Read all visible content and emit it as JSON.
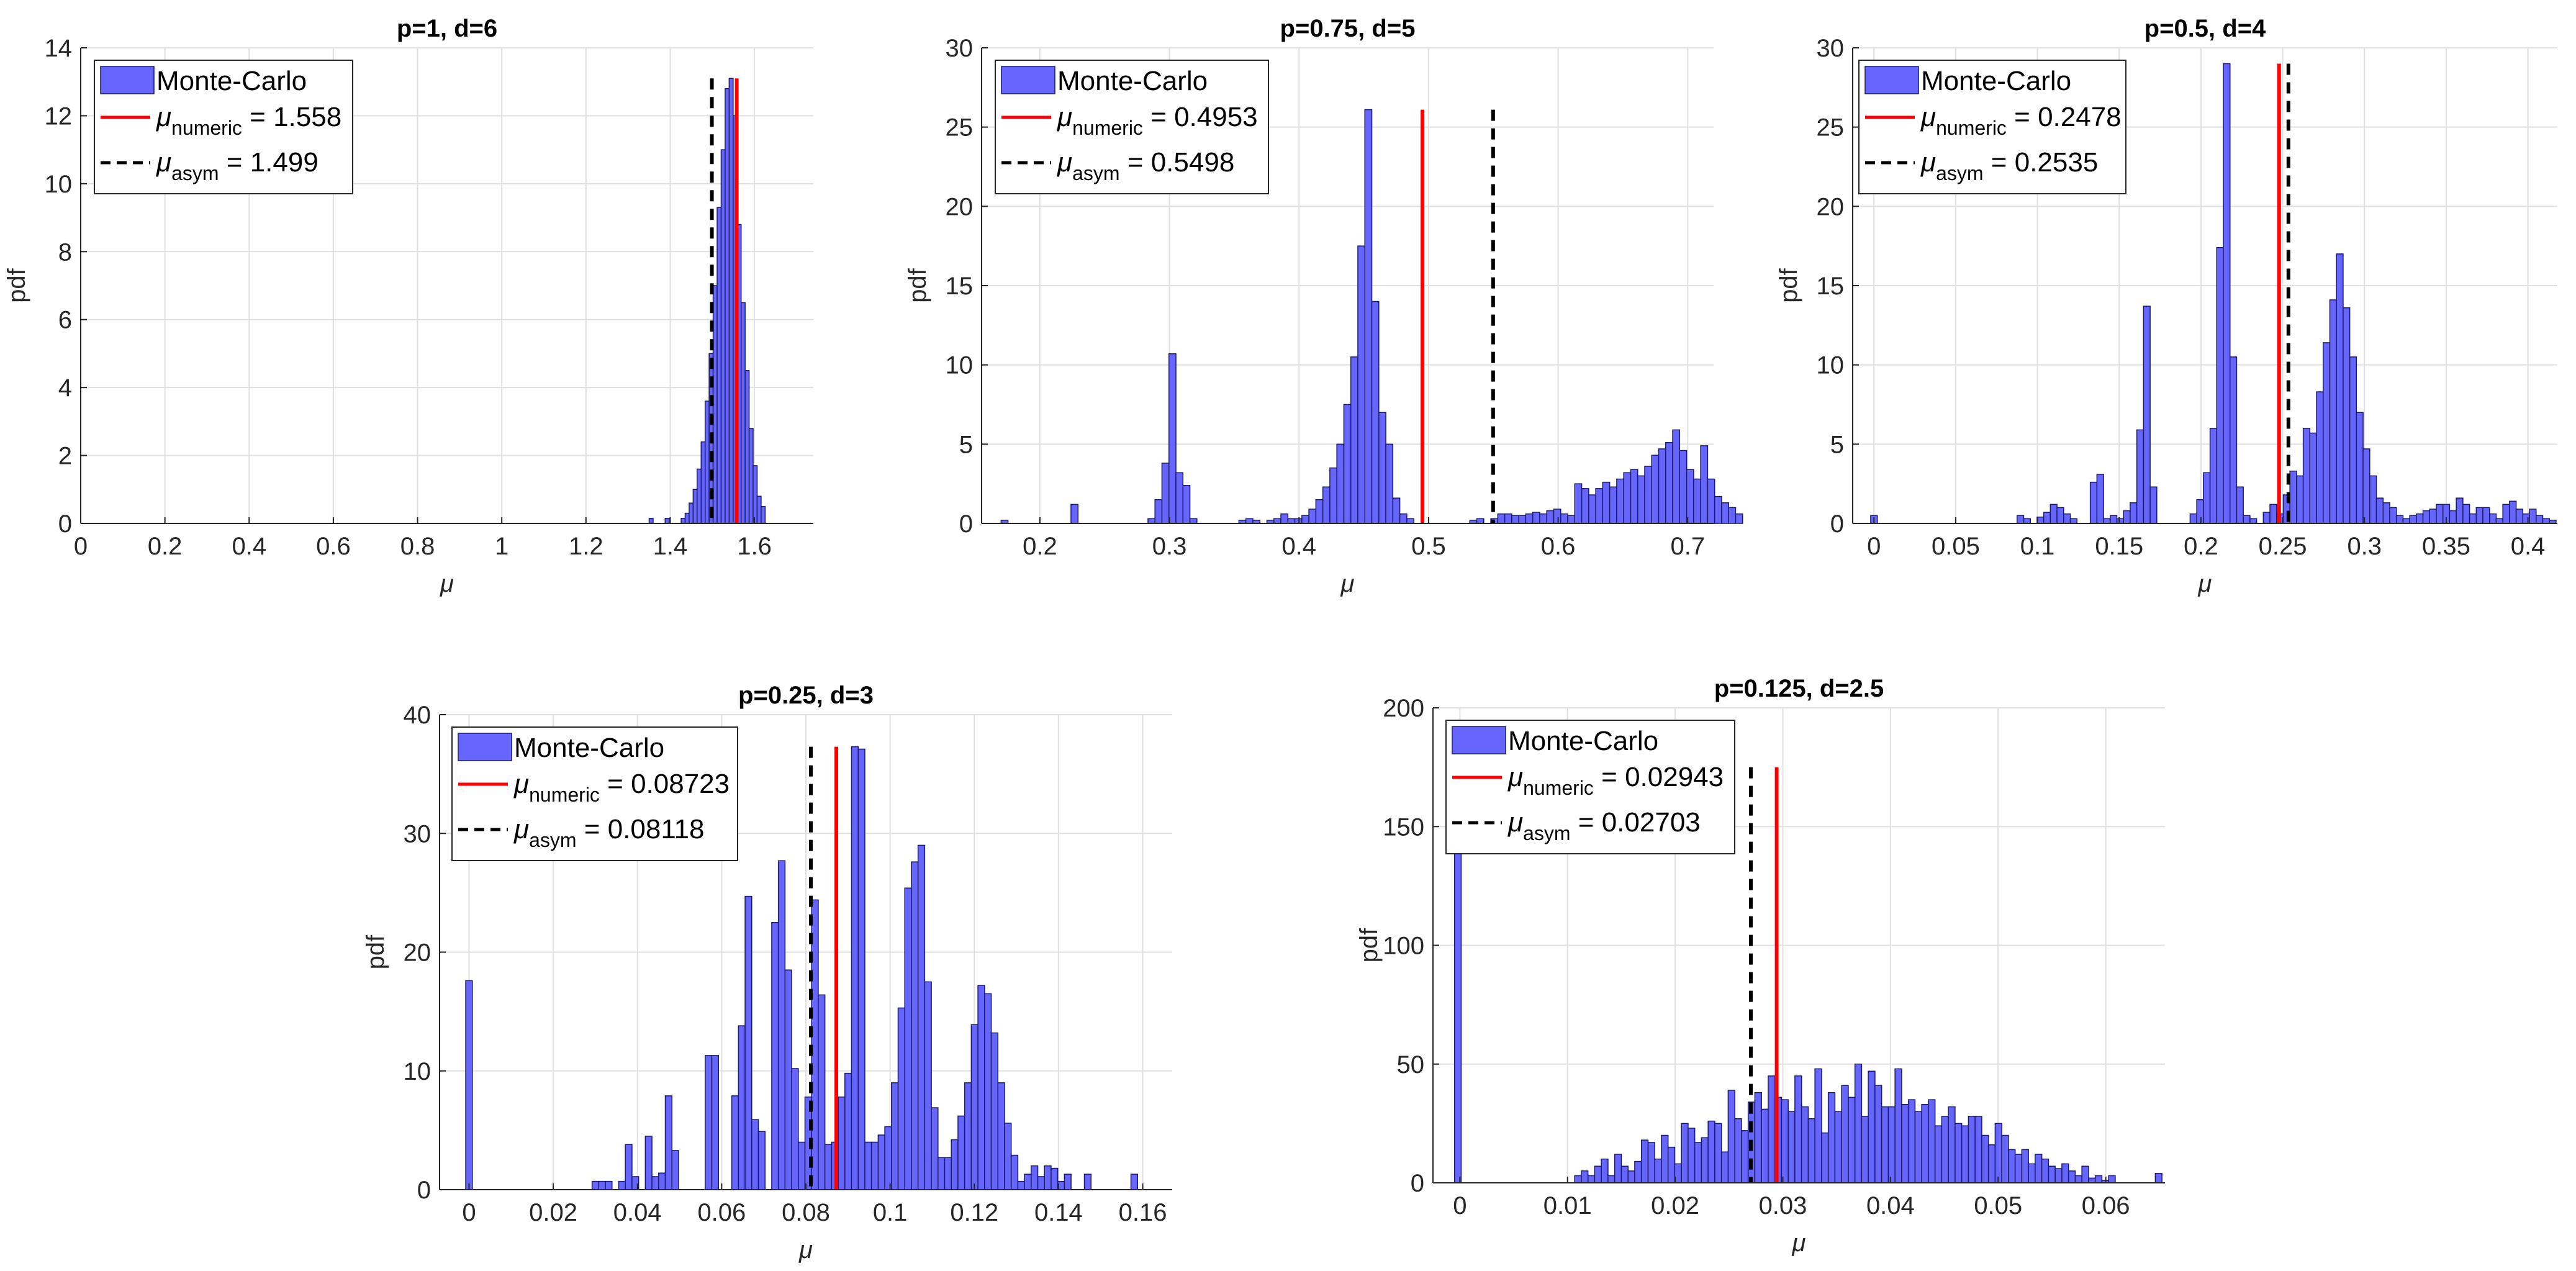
{
  "colors": {
    "bar_fill": "#6666ff",
    "bar_edge": "#1a1a66",
    "numeric": "#ff0000",
    "asym": "#000000",
    "grid": "#e0e0e0",
    "axis": "#262626"
  },
  "chart_data": [
    {
      "type": "bar",
      "title": "p=1, d=6",
      "xlabel": "μ",
      "ylabel": "pdf",
      "xlim": [
        0,
        1.74
      ],
      "ylim": [
        0,
        14
      ],
      "xticks": [
        0,
        0.2,
        0.4,
        0.6,
        0.8,
        1,
        1.2,
        1.4,
        1.6
      ],
      "xtick_labels": [
        "0",
        "0.2",
        "0.4",
        "0.6",
        "0.8",
        "1",
        "1.2",
        "1.4",
        "1.6"
      ],
      "yticks": [
        0,
        2,
        4,
        6,
        8,
        10,
        12,
        14
      ],
      "ytick_labels": [
        "0",
        "2",
        "4",
        "6",
        "8",
        "10",
        "12",
        "14"
      ],
      "bin_start": 1.35,
      "bin_width": 0.0095,
      "values": [
        0.15,
        0,
        0,
        0,
        0.15,
        0,
        0,
        0,
        0.15,
        0.3,
        0.6,
        1.0,
        1.6,
        2.4,
        3.6,
        5.0,
        7.0,
        9.3,
        11.0,
        12.8,
        13.1,
        12.0,
        8.8,
        6.5,
        4.5,
        2.8,
        1.7,
        0.8,
        0.5
      ],
      "legend": {
        "bars": "Monte-Carlo",
        "numeric": {
          "prefix": "μ",
          "sub": "numeric",
          "suffix": " = 1.558"
        },
        "asym": {
          "prefix": "μ",
          "sub": "asym",
          "suffix": " = 1.499"
        }
      },
      "mu_numeric": 1.558,
      "mu_asym": 1.499,
      "line_top": 13.1
    },
    {
      "type": "bar",
      "title": "p=0.75, d=5",
      "xlabel": "μ",
      "ylabel": "pdf",
      "xlim": [
        0.155,
        0.72
      ],
      "ylim": [
        0,
        30
      ],
      "xticks": [
        0.2,
        0.3,
        0.4,
        0.5,
        0.6,
        0.7
      ],
      "xtick_labels": [
        "0.2",
        "0.3",
        "0.4",
        "0.5",
        "0.6",
        "0.7"
      ],
      "yticks": [
        0,
        5,
        10,
        15,
        20,
        25,
        30
      ],
      "ytick_labels": [
        "0",
        "5",
        "10",
        "15",
        "20",
        "25",
        "30"
      ],
      "bin_start": 0.17,
      "bin_width": 0.0054,
      "values": [
        0.2,
        0,
        0,
        0,
        0,
        0,
        0,
        0,
        0,
        0,
        1.2,
        0,
        0,
        0,
        0,
        0,
        0,
        0,
        0,
        0,
        0,
        0.3,
        1.5,
        3.8,
        10.7,
        3.2,
        2.4,
        0.3,
        0,
        0,
        0,
        0,
        0,
        0,
        0.2,
        0.3,
        0.2,
        0,
        0.2,
        0.3,
        0.6,
        0.3,
        0.3,
        0.5,
        0.9,
        1.5,
        2.3,
        3.5,
        5.0,
        7.5,
        10.5,
        17.5,
        26.1,
        14.0,
        7.0,
        5.0,
        1.6,
        0.6,
        0.3,
        0,
        0,
        0,
        0,
        0,
        0,
        0,
        0,
        0.2,
        0.3,
        0,
        0.3,
        0.6,
        0.6,
        0.5,
        0.5,
        0.6,
        0.7,
        0.6,
        0.8,
        0.9,
        0.6,
        0.5,
        2.5,
        2.2,
        1.8,
        2.2,
        2.6,
        2.3,
        2.8,
        3.2,
        3.4,
        3.0,
        3.6,
        4.3,
        4.7,
        5.1,
        5.9,
        4.6,
        3.4,
        2.8,
        4.9,
        2.8,
        1.7,
        1.3,
        1.0,
        0.6
      ],
      "legend": {
        "bars": "Monte-Carlo",
        "numeric": {
          "prefix": "μ",
          "sub": "numeric",
          "suffix": " = 0.4953"
        },
        "asym": {
          "prefix": "μ",
          "sub": "asym",
          "suffix": " = 0.5498"
        }
      },
      "mu_numeric": 0.4953,
      "mu_asym": 0.5498,
      "line_top": 26.1
    },
    {
      "type": "bar",
      "title": "p=0.5, d=4",
      "xlabel": "μ",
      "ylabel": "pdf",
      "xlim": [
        -0.013,
        0.418
      ],
      "ylim": [
        0,
        30
      ],
      "xticks": [
        0,
        0.05,
        0.1,
        0.15,
        0.2,
        0.25,
        0.3,
        0.35,
        0.4
      ],
      "xtick_labels": [
        "0",
        "0.05",
        "0.1",
        "0.15",
        "0.2",
        "0.25",
        "0.3",
        "0.35",
        "0.4"
      ],
      "yticks": [
        0,
        5,
        10,
        15,
        20,
        25,
        30
      ],
      "ytick_labels": [
        "0",
        "5",
        "10",
        "15",
        "20",
        "25",
        "30"
      ],
      "bin_start": -0.002,
      "bin_width": 0.00407,
      "values": [
        0.5,
        0,
        0,
        0,
        0,
        0,
        0,
        0,
        0,
        0,
        0,
        0,
        0,
        0,
        0,
        0,
        0,
        0,
        0,
        0,
        0,
        0,
        0.5,
        0.3,
        0,
        0.4,
        0.7,
        1.2,
        1.0,
        0.6,
        0.3,
        0,
        0,
        2.6,
        3.1,
        0.3,
        0.5,
        0.3,
        0.8,
        1.3,
        5.9,
        13.7,
        2.3,
        0,
        0,
        0,
        0,
        0,
        0.6,
        1.5,
        3.2,
        6.0,
        17.4,
        29.0,
        10.5,
        2.3,
        0.5,
        0.3,
        0,
        0.7,
        1.2,
        0.6,
        1.8,
        3.3,
        3.0,
        6.0,
        5.7,
        8.3,
        11.4,
        14.1,
        17.0,
        13.6,
        10.5,
        7.0,
        4.7,
        3.0,
        1.6,
        1.3,
        1.0,
        0.5,
        0.3,
        0.5,
        0.6,
        0.8,
        0.9,
        1.2,
        1.2,
        0.8,
        1.6,
        1.2,
        0.6,
        1.0,
        1.0,
        0.6,
        0.3,
        1.2,
        1.4,
        0.9,
        0.6,
        0.9,
        0.5,
        0.3,
        0.2
      ],
      "legend": {
        "bars": "Monte-Carlo",
        "numeric": {
          "prefix": "μ",
          "sub": "numeric",
          "suffix": " = 0.2478"
        },
        "asym": {
          "prefix": "μ",
          "sub": "asym",
          "suffix": " = 0.2535"
        }
      },
      "mu_numeric": 0.2478,
      "mu_asym": 0.2535,
      "line_top": 29.0
    },
    {
      "type": "bar",
      "title": "p=0.25, d=3",
      "xlabel": "μ",
      "ylabel": "pdf",
      "xlim": [
        -0.007,
        0.167
      ],
      "ylim": [
        0,
        40
      ],
      "xticks": [
        0,
        0.02,
        0.04,
        0.06,
        0.08,
        0.1,
        0.12,
        0.14,
        0.16
      ],
      "xtick_labels": [
        "0",
        "0.02",
        "0.04",
        "0.06",
        "0.08",
        "0.1",
        "0.12",
        "0.14",
        "0.16"
      ],
      "yticks": [
        0,
        10,
        20,
        30,
        40
      ],
      "ytick_labels": [
        "0",
        "10",
        "20",
        "30",
        "40"
      ],
      "bin_start": -0.0008,
      "bin_width": 0.00158,
      "values": [
        17.6,
        0,
        0,
        0,
        0,
        0,
        0,
        0,
        0,
        0,
        0,
        0,
        0,
        0,
        0,
        0,
        0,
        0,
        0,
        0.7,
        0.7,
        0.7,
        0,
        0.7,
        3.8,
        1.1,
        0,
        4.5,
        1.1,
        1.4,
        7.9,
        3.3,
        0,
        0,
        0,
        0,
        11.3,
        11.3,
        0,
        0,
        7.9,
        13.8,
        24.7,
        5.9,
        4.9,
        0,
        22.5,
        27.7,
        18.5,
        10.2,
        4.0,
        7.8,
        24.4,
        16.4,
        3.8,
        4.0,
        7.8,
        9.8,
        37.3,
        37.1,
        4.0,
        4.0,
        4.6,
        5.3,
        9.0,
        15.3,
        25.4,
        27.6,
        29.0,
        17.5,
        6.9,
        2.7,
        2.7,
        4.2,
        6.2,
        9.0,
        13.9,
        17.2,
        16.5,
        13.2,
        9.0,
        5.6,
        2.9,
        0.7,
        1.3,
        2.0,
        1.1,
        2.0,
        1.8,
        0.7,
        1.3,
        0,
        0,
        1.3,
        0,
        0,
        0,
        0,
        0,
        0,
        1.3
      ],
      "legend": {
        "bars": "Monte-Carlo",
        "numeric": {
          "prefix": "μ",
          "sub": "numeric",
          "suffix": " = 0.08723"
        },
        "asym": {
          "prefix": "μ",
          "sub": "asym",
          "suffix": " = 0.08118"
        }
      },
      "mu_numeric": 0.08723,
      "mu_asym": 0.08118,
      "line_top": 37.3
    },
    {
      "type": "bar",
      "title": "p=0.125, d=2.5",
      "xlabel": "μ",
      "ylabel": "pdf",
      "xlim": [
        -0.0025,
        0.0655
      ],
      "ylim": [
        0,
        200
      ],
      "xticks": [
        0,
        0.01,
        0.02,
        0.03,
        0.04,
        0.05,
        0.06
      ],
      "xtick_labels": [
        "0",
        "0.01",
        "0.02",
        "0.03",
        "0.04",
        "0.05",
        "0.06"
      ],
      "yticks": [
        0,
        50,
        100,
        150,
        200
      ],
      "ytick_labels": [
        "0",
        "50",
        "100",
        "150",
        "200"
      ],
      "bin_start": -0.0005,
      "bin_width": 0.00062,
      "values": [
        140,
        0,
        0,
        0,
        0,
        0,
        0,
        0,
        0,
        0,
        0,
        0,
        0,
        0,
        0,
        0,
        0,
        0,
        3,
        5,
        3,
        7,
        10,
        3,
        12,
        7,
        5,
        9,
        18,
        17,
        10,
        20,
        15,
        8,
        25,
        23,
        17,
        19,
        26,
        25,
        13,
        39,
        27,
        22,
        34,
        38,
        31,
        45,
        36,
        35,
        30,
        45,
        32,
        27,
        48,
        21,
        38,
        30,
        41,
        36,
        50,
        28,
        47,
        41,
        32,
        32,
        48,
        33,
        35,
        30,
        33,
        35,
        24,
        28,
        32,
        25,
        24,
        28,
        28,
        20,
        16,
        25,
        20,
        14,
        12,
        14,
        8,
        12,
        10,
        7,
        6,
        8,
        5,
        3,
        7,
        2,
        3,
        1,
        3,
        0,
        0,
        0,
        0,
        0,
        0,
        4
      ],
      "legend": {
        "bars": "Monte-Carlo",
        "numeric": {
          "prefix": "μ",
          "sub": "numeric",
          "suffix": " = 0.02943"
        },
        "asym": {
          "prefix": "μ",
          "sub": "asym",
          "suffix": " = 0.02703"
        }
      },
      "mu_numeric": 0.02943,
      "mu_asym": 0.02703,
      "line_top": 175
    }
  ]
}
